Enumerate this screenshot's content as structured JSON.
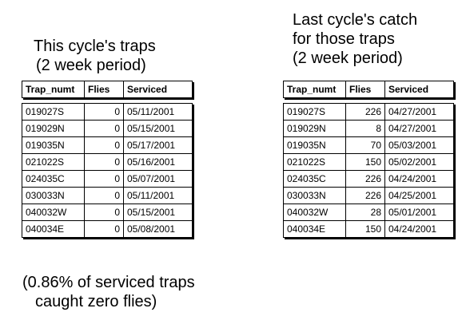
{
  "left_heading": {
    "line1": "This cycle's traps",
    "line2": "(2 week period)"
  },
  "right_heading": {
    "line1": "Last cycle's catch",
    "line2": "for those traps",
    "line3": "(2 week period)"
  },
  "footer_note": {
    "line1": "(0.86% of serviced traps",
    "line2": "caught zero flies)"
  },
  "columns": [
    "Trap_numt",
    "Flies",
    "Serviced"
  ],
  "this_cycle_rows": [
    [
      "019027S",
      "0",
      "05/11/2001"
    ],
    [
      "019029N",
      "0",
      "05/15/2001"
    ],
    [
      "019035N",
      "0",
      "05/17/2001"
    ],
    [
      "021022S",
      "0",
      "05/16/2001"
    ],
    [
      "024035C",
      "0",
      "05/07/2001"
    ],
    [
      "030033N",
      "0",
      "05/11/2001"
    ],
    [
      "040032W",
      "0",
      "05/15/2001"
    ],
    [
      "040034E",
      "0",
      "05/08/2001"
    ]
  ],
  "last_cycle_rows": [
    [
      "019027S",
      "226",
      "04/27/2001"
    ],
    [
      "019029N",
      "8",
      "04/27/2001"
    ],
    [
      "019035N",
      "70",
      "05/03/2001"
    ],
    [
      "021022S",
      "150",
      "05/02/2001"
    ],
    [
      "024035C",
      "226",
      "04/24/2001"
    ],
    [
      "030033N",
      "226",
      "04/25/2001"
    ],
    [
      "040032W",
      "28",
      "05/01/2001"
    ],
    [
      "040034E",
      "150",
      "04/24/2001"
    ]
  ]
}
